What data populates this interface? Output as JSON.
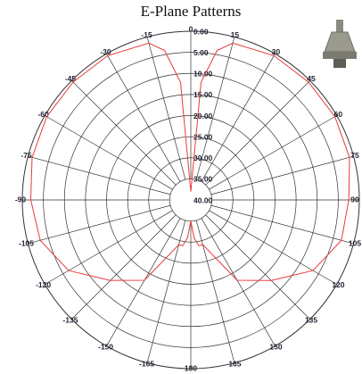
{
  "chart_data": {
    "type": "polar",
    "title": "E-Plane Patterns",
    "theta": [
      -180,
      -175,
      -170,
      -165,
      -150,
      -135,
      -120,
      -105,
      -90,
      -75,
      -60,
      -45,
      -30,
      -15,
      -10,
      -5,
      0,
      5,
      10,
      15,
      30,
      45,
      60,
      75,
      90,
      105,
      120,
      135,
      150,
      165,
      170,
      175,
      180
    ],
    "values": [
      -35,
      -31,
      -29,
      -29,
      -18,
      -13,
      -6.5,
      -3,
      -2,
      -1,
      -0.5,
      -0.5,
      -0.5,
      -1.5,
      -4,
      -12,
      -38,
      -12,
      -4,
      -1.5,
      -0.5,
      -0.5,
      -0.5,
      -1,
      -2.5,
      -3,
      -6.5,
      -13,
      -18,
      -29,
      -29,
      -31,
      -35
    ],
    "color": "#e8393a",
    "rlim": [
      -40,
      0
    ],
    "rticks": [
      {
        "value": 0,
        "label": "0.00"
      },
      {
        "value": -5,
        "label": "5.00"
      },
      {
        "value": -10,
        "label": "10.00"
      },
      {
        "value": -15,
        "label": "15.00"
      },
      {
        "value": -20,
        "label": "20.00"
      },
      {
        "value": -25,
        "label": "25.00"
      },
      {
        "value": -30,
        "label": "30.00"
      },
      {
        "value": -35,
        "label": "35.00"
      },
      {
        "value": -40,
        "label": "40.00"
      }
    ],
    "thetaticks": [
      0,
      15,
      30,
      45,
      60,
      75,
      90,
      105,
      120,
      135,
      150,
      165,
      180,
      -165,
      -150,
      -135,
      -120,
      -105,
      -90,
      -75,
      -60,
      -45,
      -30,
      -15
    ],
    "grid": true
  }
}
